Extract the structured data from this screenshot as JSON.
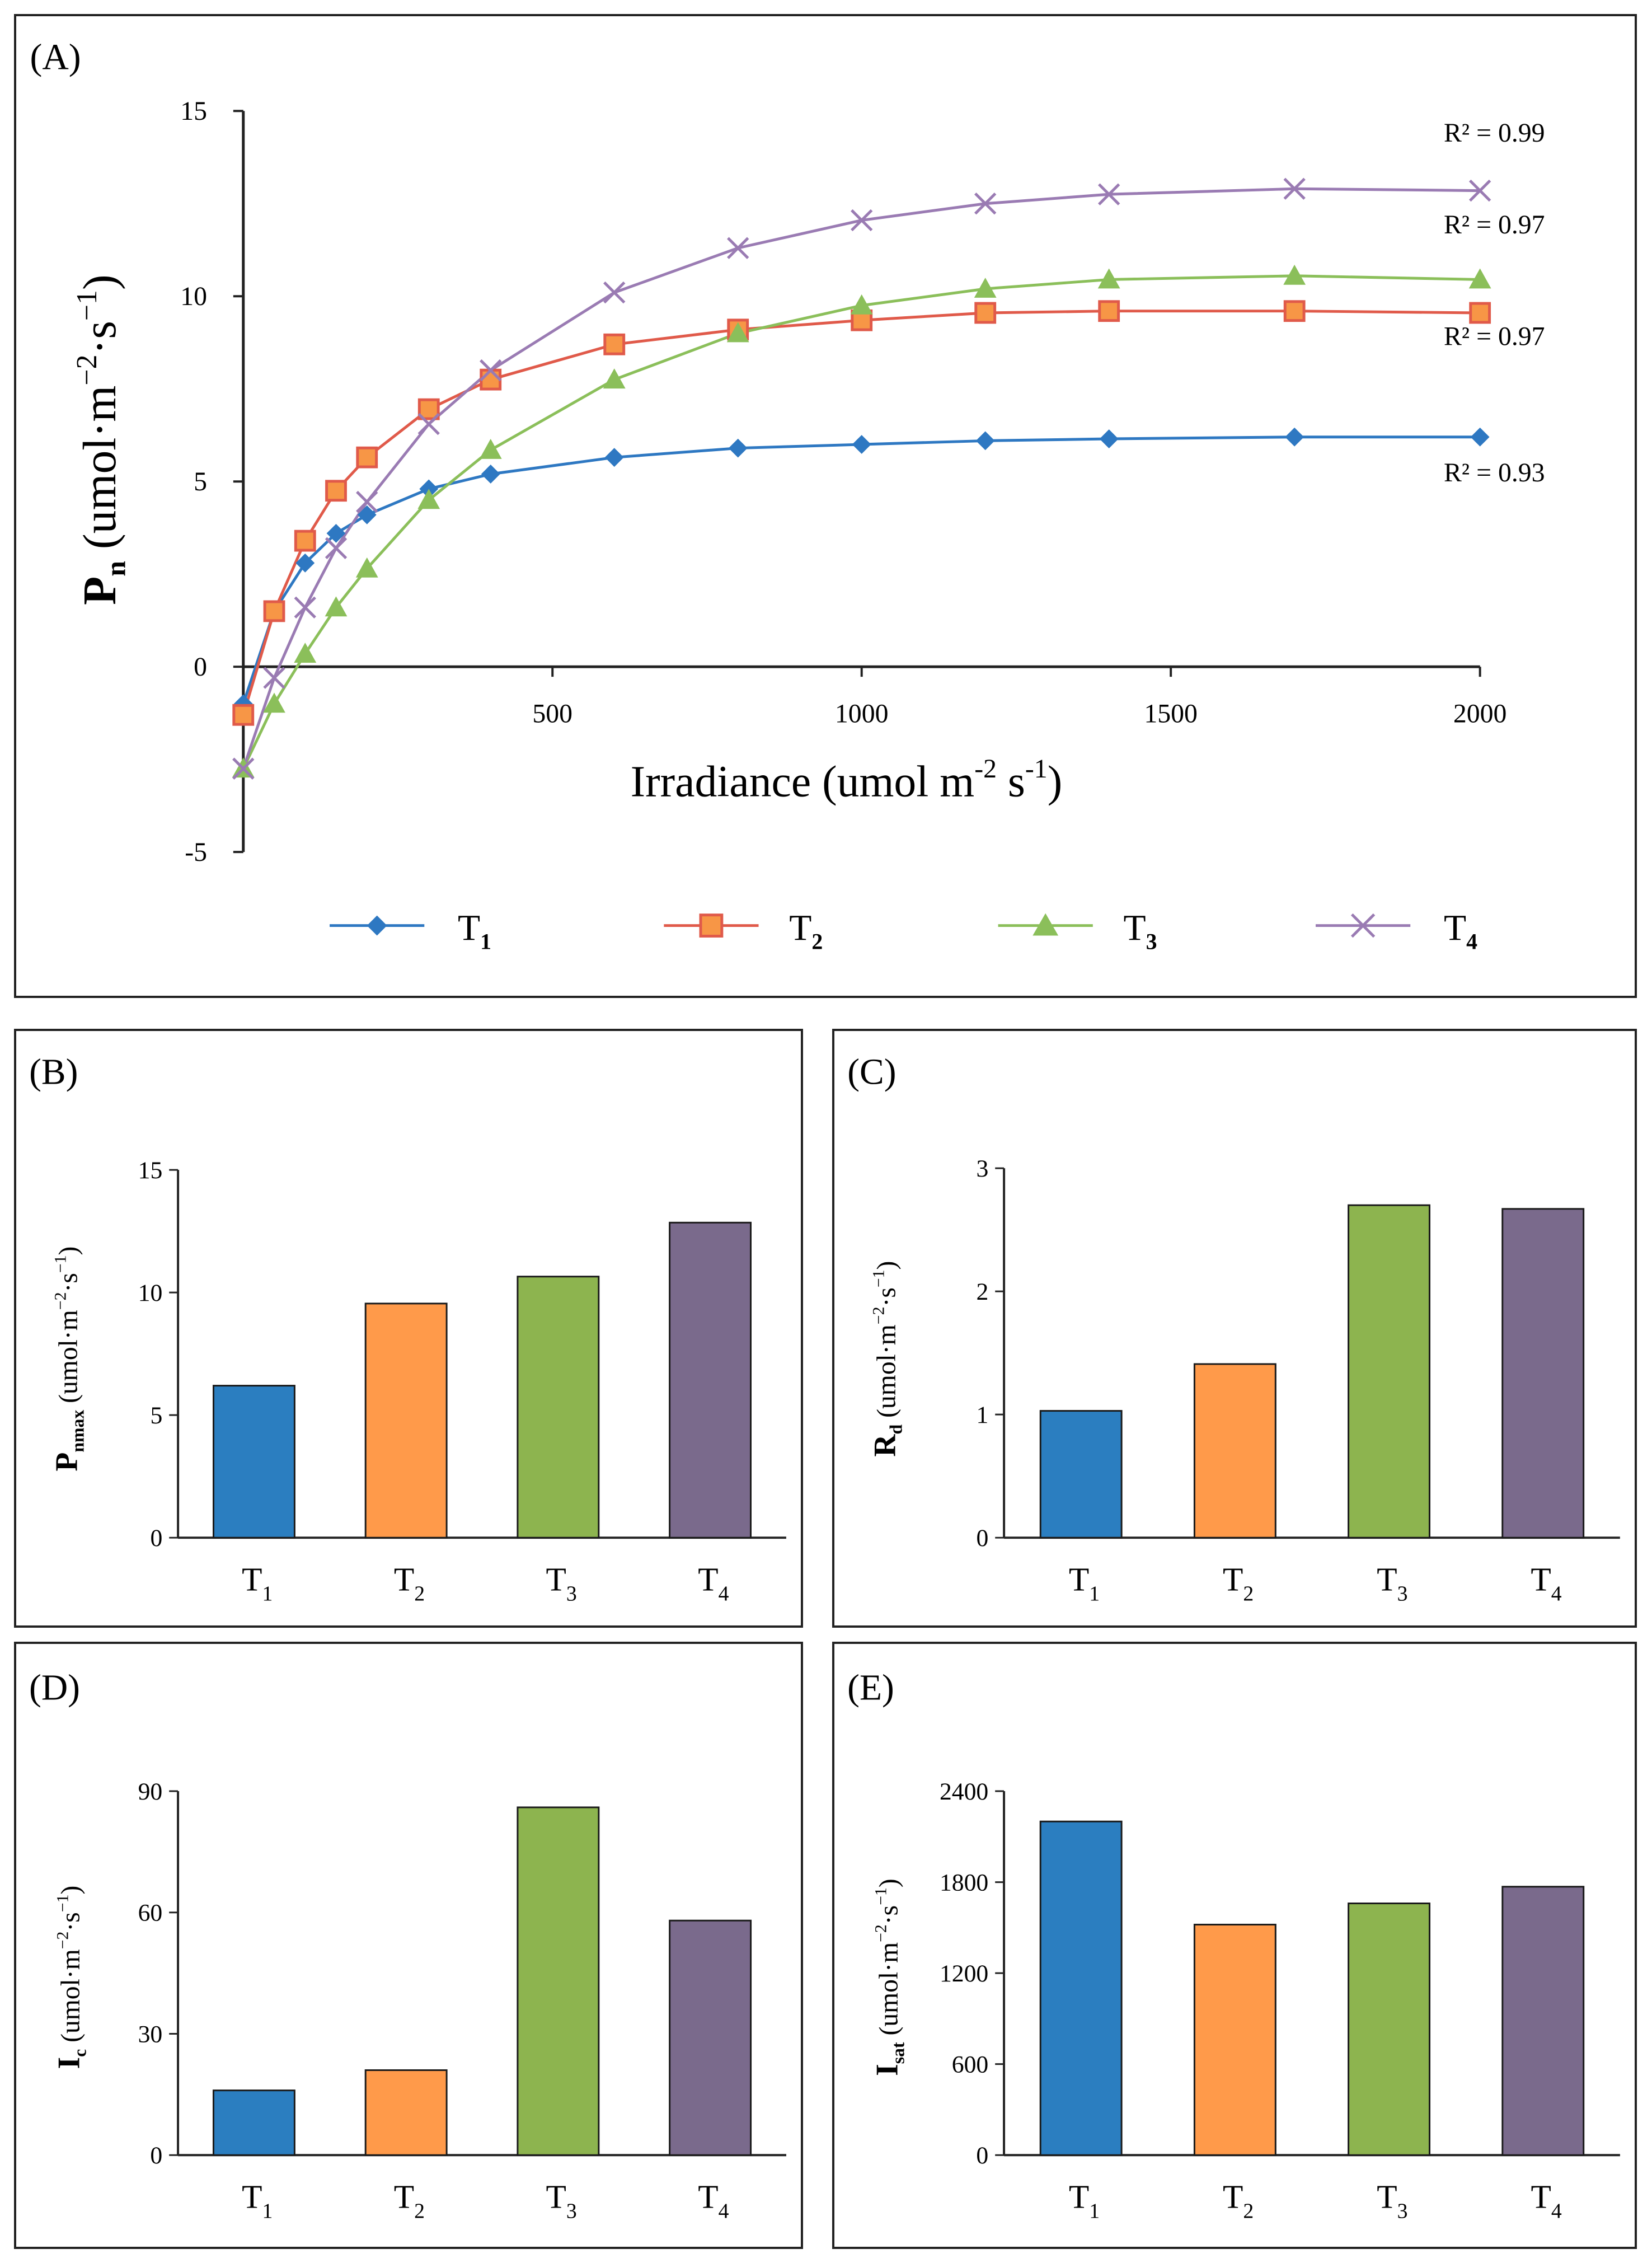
{
  "panels": {
    "a": {
      "letter": "(A)",
      "chart_data": {
        "type": "line",
        "title": "",
        "xlabel": "Irradiance (umol m-2 s-1)",
        "xlabel_parts": {
          "base": "Irradiance (umol m",
          "exp1": "-2",
          "mid": " s",
          "exp2": "-1",
          "end": ")"
        },
        "ylabel": "Pn (umol·m−2·s−1)",
        "ylabel_parts": {
          "main": "P",
          "sub": "n",
          "unit_open": " (umol·m",
          "exp1": "−2",
          "unit_mid": "·s",
          "exp2": "−1",
          "unit_close": ")"
        },
        "xlim": [
          0,
          2000
        ],
        "ylim": [
          -5,
          15
        ],
        "xticks": [
          0,
          500,
          1000,
          1500,
          2000
        ],
        "yticks": [
          -5,
          0,
          5,
          10,
          15
        ],
        "x": [
          0,
          50,
          100,
          150,
          200,
          300,
          400,
          600,
          800,
          1000,
          1200,
          1400,
          1700,
          2000
        ],
        "series": [
          {
            "name": "T1",
            "label_main": "T",
            "label_sub": "1",
            "color": "#2e78c2",
            "marker": "diamond",
            "r2": "R² = 0.93",
            "values": [
              -1.0,
              1.5,
              2.8,
              3.6,
              4.1,
              4.8,
              5.2,
              5.65,
              5.9,
              6.0,
              6.1,
              6.15,
              6.2,
              6.2
            ]
          },
          {
            "name": "T2",
            "label_main": "T",
            "label_sub": "2",
            "color": "#e05a4a",
            "marker": "square",
            "fill": "#f79646",
            "r2": "R² = 0.97",
            "values": [
              -1.3,
              1.5,
              3.4,
              4.75,
              5.65,
              6.95,
              7.75,
              8.7,
              9.1,
              9.35,
              9.55,
              9.6,
              9.6,
              9.55
            ]
          },
          {
            "name": "T3",
            "label_main": "T",
            "label_sub": "3",
            "color": "#8bbf5a",
            "marker": "triangle",
            "r2": "R² = 0.97",
            "values": [
              -2.75,
              -1.0,
              0.35,
              1.6,
              2.65,
              4.5,
              5.85,
              7.75,
              9.0,
              9.75,
              10.2,
              10.45,
              10.55,
              10.45
            ]
          },
          {
            "name": "T4",
            "label_main": "T",
            "label_sub": "4",
            "color": "#9a7bb3",
            "marker": "cross",
            "r2": "R² = 0.99",
            "values": [
              -2.75,
              -0.3,
              1.6,
              3.2,
              4.45,
              6.55,
              8.0,
              10.1,
              11.3,
              12.05,
              12.5,
              12.75,
              12.9,
              12.85
            ]
          }
        ]
      }
    },
    "b": {
      "letter": "(B)",
      "chart_data": {
        "type": "bar",
        "categories": [
          "T1",
          "T2",
          "T3",
          "T4"
        ],
        "values": [
          6.2,
          9.55,
          10.65,
          12.85
        ],
        "ylim": [
          0,
          15
        ],
        "yticks": [
          0,
          5,
          10,
          15
        ],
        "ylabel": "Pnmax (umol·m−2·s−1)",
        "ylabel_parts": {
          "main": "P",
          "sub": "nmax",
          "unit_open": " (umol·m",
          "exp1": "−2",
          "unit_mid": "·s",
          "exp2": "−1",
          "unit_close": ")"
        }
      }
    },
    "c": {
      "letter": "(C)",
      "chart_data": {
        "type": "bar",
        "categories": [
          "T1",
          "T2",
          "T3",
          "T4"
        ],
        "values": [
          1.03,
          1.41,
          2.7,
          2.67
        ],
        "ylim": [
          0,
          3
        ],
        "yticks": [
          0,
          1,
          2,
          3
        ],
        "ylabel": "Rd (umol·m−2·s−1)",
        "ylabel_parts": {
          "main": "R",
          "sub": "d",
          "unit_open": " (umol·m",
          "exp1": "−2",
          "unit_mid": "·s",
          "exp2": "−1",
          "unit_close": ")"
        }
      }
    },
    "d": {
      "letter": "(D)",
      "chart_data": {
        "type": "bar",
        "categories": [
          "T1",
          "T2",
          "T3",
          "T4"
        ],
        "values": [
          16,
          21,
          86,
          58
        ],
        "ylim": [
          0,
          90
        ],
        "yticks": [
          0,
          30,
          60,
          90
        ],
        "ylabel": "Ic (umol·m−2·s−1)",
        "ylabel_parts": {
          "main": "I",
          "sub": "c",
          "unit_open": " (umol·m",
          "exp1": "−2",
          "unit_mid": "·s",
          "exp2": "−1",
          "unit_close": ")"
        }
      }
    },
    "e": {
      "letter": "(E)",
      "chart_data": {
        "type": "bar",
        "categories": [
          "T1",
          "T2",
          "T3",
          "T4"
        ],
        "values": [
          2200,
          1520,
          1660,
          1770
        ],
        "ylim": [
          0,
          2400
        ],
        "yticks": [
          0,
          600,
          1200,
          1800,
          2400
        ],
        "ylabel": "Isat (umol·m−2·s−1)",
        "ylabel_parts": {
          "main": "I",
          "sub": "sat",
          "unit_open": " (umol·m",
          "exp1": "−2",
          "unit_mid": "·s",
          "exp2": "−1",
          "unit_close": ")"
        }
      }
    }
  },
  "category_labels": [
    {
      "main": "T",
      "sub": "1"
    },
    {
      "main": "T",
      "sub": "2"
    },
    {
      "main": "T",
      "sub": "3"
    },
    {
      "main": "T",
      "sub": "4"
    }
  ],
  "bar_colors": {
    "T1": "#2b7ec0",
    "T2": "#ff9a4a",
    "T3": "#8db44f",
    "T4": "#7a6a8c"
  },
  "axis_color": "#222222"
}
